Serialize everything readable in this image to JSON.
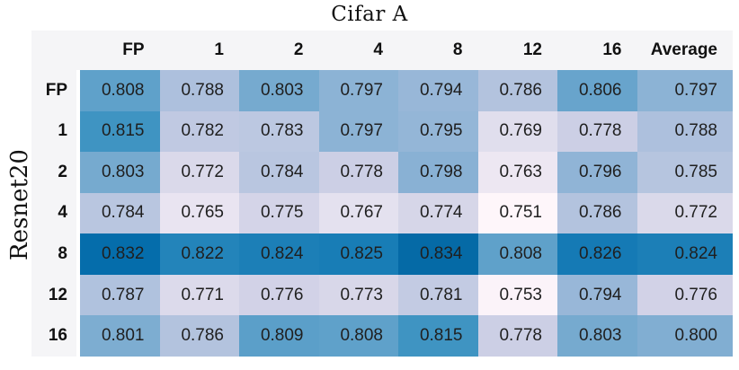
{
  "chart_data": {
    "type": "heatmap",
    "title": "Cifar A",
    "row_axis_label": "Resnet20",
    "columns": [
      "FP",
      "1",
      "2",
      "4",
      "8",
      "12",
      "16",
      "Average"
    ],
    "rows": [
      "FP",
      "1",
      "2",
      "4",
      "8",
      "12",
      "16"
    ],
    "values": [
      [
        0.808,
        0.788,
        0.803,
        0.797,
        0.794,
        0.786,
        0.806,
        0.797
      ],
      [
        0.815,
        0.782,
        0.783,
        0.797,
        0.795,
        0.769,
        0.778,
        0.788
      ],
      [
        0.803,
        0.772,
        0.784,
        0.778,
        0.798,
        0.763,
        0.796,
        0.785
      ],
      [
        0.784,
        0.765,
        0.775,
        0.767,
        0.774,
        0.751,
        0.786,
        0.772
      ],
      [
        0.832,
        0.822,
        0.824,
        0.825,
        0.834,
        0.808,
        0.826,
        0.824
      ],
      [
        0.787,
        0.771,
        0.776,
        0.773,
        0.781,
        0.753,
        0.794,
        0.776
      ],
      [
        0.801,
        0.786,
        0.809,
        0.808,
        0.815,
        0.778,
        0.803,
        0.8
      ]
    ],
    "value_decimals": 3,
    "legend": "none",
    "grid": "off",
    "colormap": {
      "name": "PuBu",
      "anchors": [
        "#fff7fb",
        "#ece7f2",
        "#d0d1e6",
        "#a6bddb",
        "#74a9cf",
        "#3690c0",
        "#0570b0",
        "#045a8d",
        "#023858"
      ],
      "vmin": 0.75,
      "vmax": 0.857
    },
    "colors": {
      "header_background": "#f5f5f7",
      "value_text": "#1f1f1f",
      "header_text": "#111111",
      "title_text": "#111111",
      "page_background": "#ffffff"
    }
  }
}
